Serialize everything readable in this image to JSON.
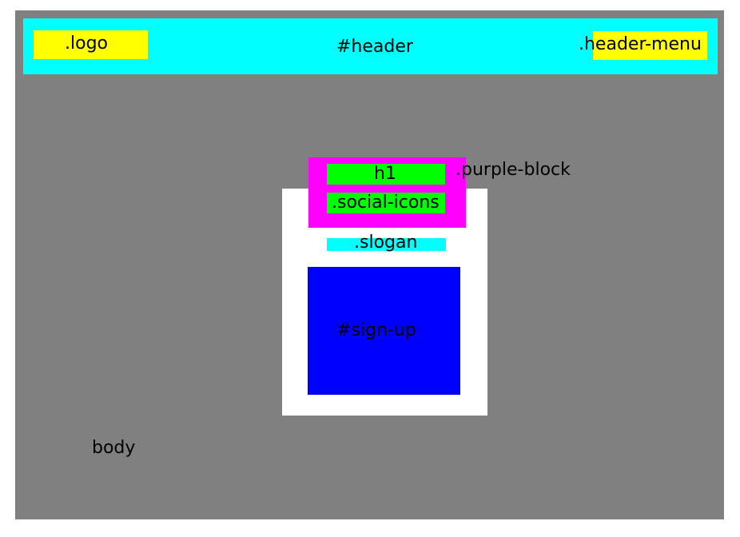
{
  "labels": {
    "body": "body",
    "header": "#header",
    "logo": ".logo",
    "header_menu": ".header-menu",
    "purple_block": ".purple-block",
    "h1": "h1",
    "social_icons": ".social-icons",
    "slogan": ".slogan",
    "sign_up": "#sign-up"
  },
  "colors": {
    "body": "#808080",
    "header": "#00ffff",
    "logo": "#ffff00",
    "header_menu": "#ffff00",
    "purple_block": "#ff00ff",
    "content_panel": "#ffffff",
    "h1": "#00ff00",
    "social_icons": "#00ff00",
    "slogan": "#00ffff",
    "sign_up": "#0000ff"
  }
}
